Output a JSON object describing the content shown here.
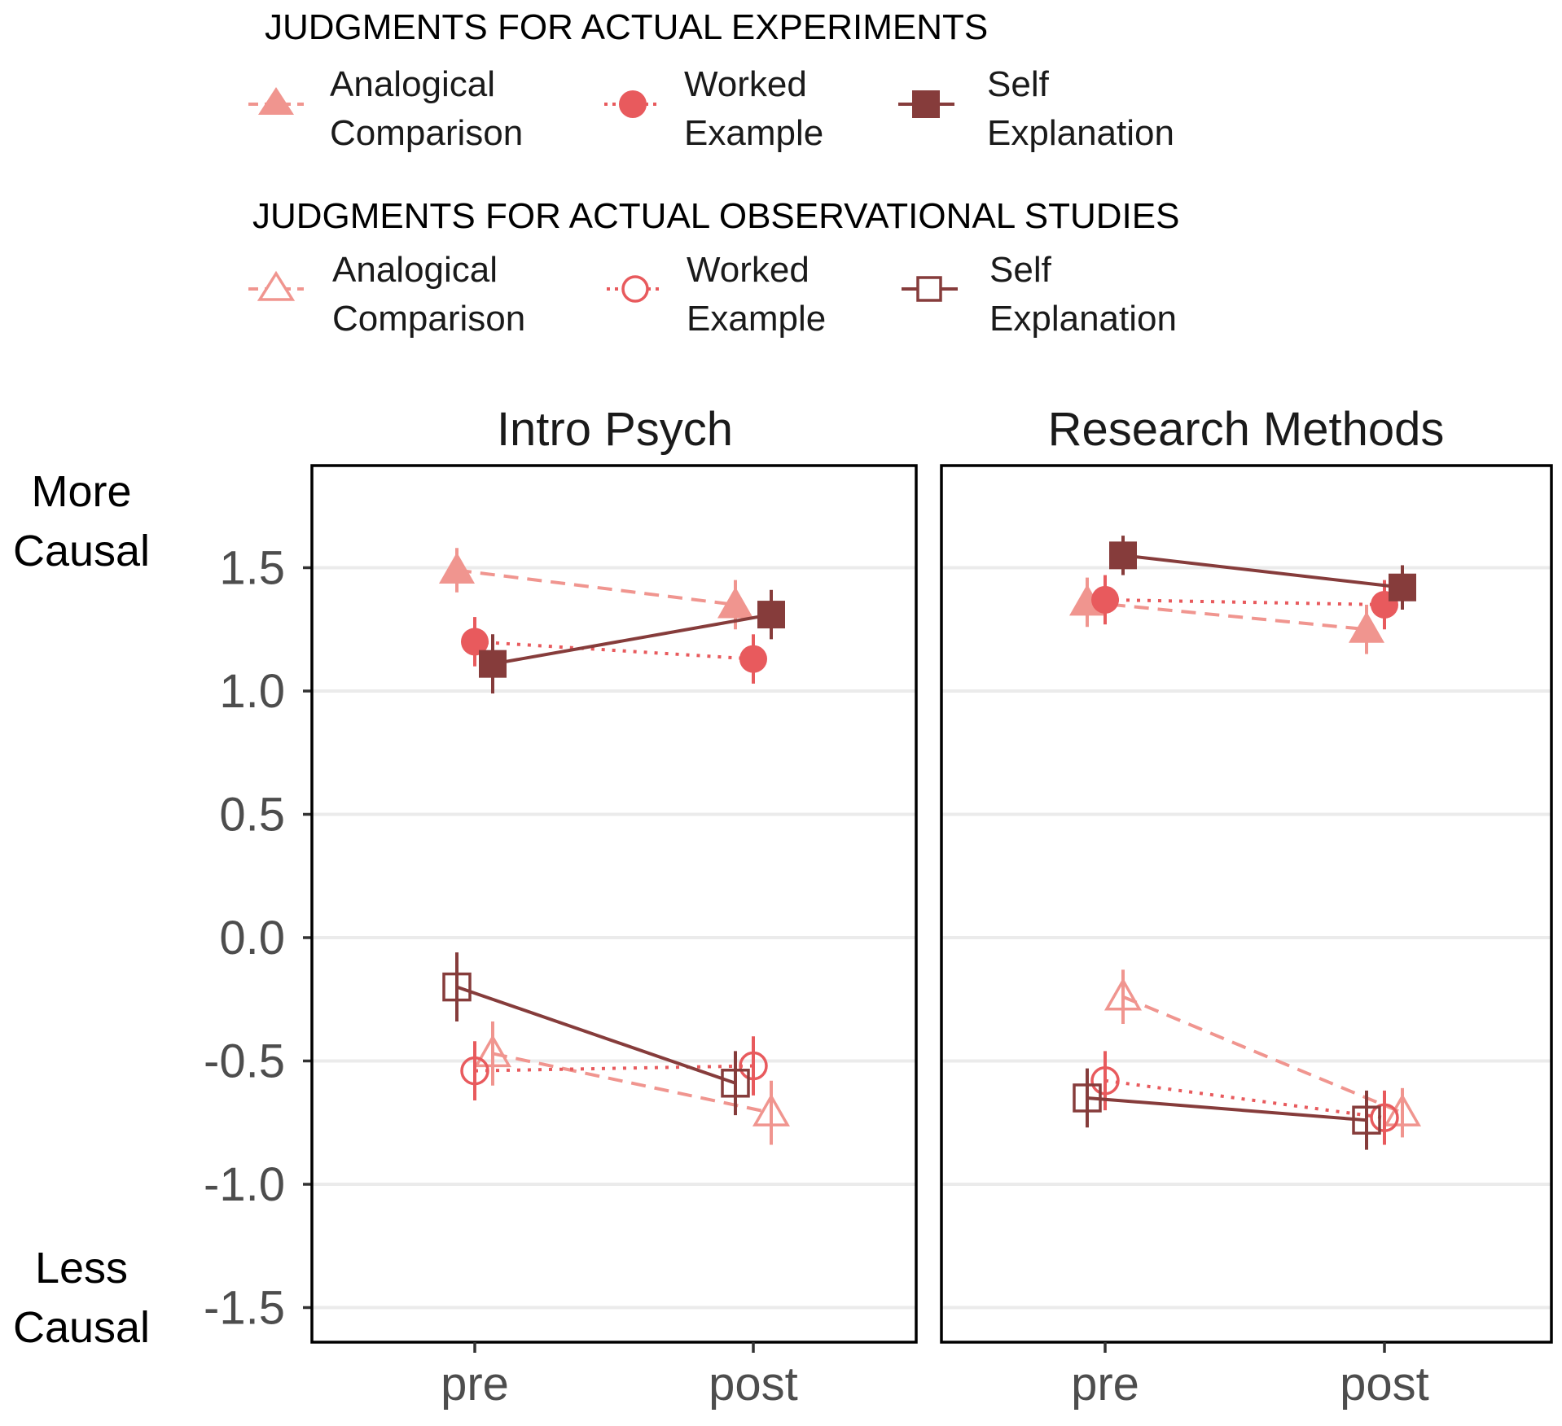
{
  "colors": {
    "analogical": "#f0958f",
    "worked": "#e85a5d",
    "self": "#863c3b",
    "grid": "#ebebeb"
  },
  "legend": {
    "experiments_title": "JUDGMENTS FOR ACTUAL EXPERIMENTS",
    "observational_title": "JUDGMENTS FOR ACTUAL OBSERVATIONAL STUDIES",
    "items": [
      {
        "key": "analogical",
        "line1": "Analogical",
        "line2": "Comparison",
        "shape": "triangle",
        "dash": "dashed"
      },
      {
        "key": "worked",
        "line1": "Worked",
        "line2": "Example",
        "shape": "circle",
        "dash": "dotted"
      },
      {
        "key": "self",
        "line1": "Self",
        "line2": "Explanation",
        "shape": "square",
        "dash": "solid"
      }
    ]
  },
  "axis_labels": {
    "top_line1": "More",
    "top_line2": "Causal",
    "bottom_line1": "Less",
    "bottom_line2": "Causal"
  },
  "chart_data": {
    "type": "line",
    "x": [
      "pre",
      "post"
    ],
    "y_ticks": [
      "1.5",
      "1.0",
      "0.5",
      "0.0",
      "-0.5",
      "-1.0",
      "-1.5"
    ],
    "y_tick_values": [
      1.5,
      1.0,
      0.5,
      0.0,
      -0.5,
      -1.0,
      -1.5
    ],
    "ylim": [
      -1.65,
      1.9
    ],
    "grid": true,
    "legend_position": "top",
    "error_bars": true,
    "panels": [
      {
        "title": "Intro Psych",
        "series": [
          {
            "name": "Analogical Comparison",
            "condition": "analogical",
            "judgment": "experiments",
            "values": [
              1.49,
              1.35
            ],
            "errors": [
              0.09,
              0.1
            ]
          },
          {
            "name": "Worked Example",
            "condition": "worked",
            "judgment": "experiments",
            "values": [
              1.2,
              1.13
            ],
            "errors": [
              0.1,
              0.1
            ]
          },
          {
            "name": "Self Explanation",
            "condition": "self",
            "judgment": "experiments",
            "values": [
              1.11,
              1.31
            ],
            "errors": [
              0.12,
              0.1
            ]
          },
          {
            "name": "Analogical Comparison",
            "condition": "analogical",
            "judgment": "observational",
            "values": [
              -0.47,
              -0.71
            ],
            "errors": [
              0.13,
              0.13
            ]
          },
          {
            "name": "Worked Example",
            "condition": "worked",
            "judgment": "observational",
            "values": [
              -0.54,
              -0.52
            ],
            "errors": [
              0.12,
              0.12
            ]
          },
          {
            "name": "Self Explanation",
            "condition": "self",
            "judgment": "observational",
            "values": [
              -0.2,
              -0.59
            ],
            "errors": [
              0.14,
              0.13
            ]
          }
        ]
      },
      {
        "title": "Research Methods",
        "series": [
          {
            "name": "Analogical Comparison",
            "condition": "analogical",
            "judgment": "experiments",
            "values": [
              1.36,
              1.25
            ],
            "errors": [
              0.1,
              0.1
            ]
          },
          {
            "name": "Worked Example",
            "condition": "worked",
            "judgment": "experiments",
            "values": [
              1.37,
              1.35
            ],
            "errors": [
              0.1,
              0.1
            ]
          },
          {
            "name": "Self Explanation",
            "condition": "self",
            "judgment": "experiments",
            "values": [
              1.55,
              1.42
            ],
            "errors": [
              0.08,
              0.09
            ]
          },
          {
            "name": "Analogical Comparison",
            "condition": "analogical",
            "judgment": "observational",
            "values": [
              -0.24,
              -0.71
            ],
            "errors": [
              0.11,
              0.1
            ]
          },
          {
            "name": "Worked Example",
            "condition": "worked",
            "judgment": "observational",
            "values": [
              -0.58,
              -0.73
            ],
            "errors": [
              0.12,
              0.11
            ]
          },
          {
            "name": "Self Explanation",
            "condition": "self",
            "judgment": "observational",
            "values": [
              -0.65,
              -0.74
            ],
            "errors": [
              0.12,
              0.12
            ]
          }
        ]
      }
    ]
  }
}
